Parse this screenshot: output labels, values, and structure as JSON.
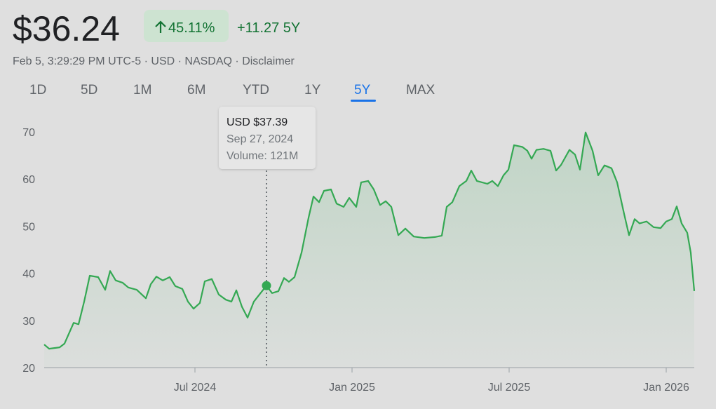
{
  "header": {
    "price": "$36.24",
    "change_percent": "45.11%",
    "change": "+11.27 5Y",
    "subtitle": "Feb 5, 3:29:29 PM UTC-5 · USD · NASDAQ · Disclaimer",
    "tabs": [
      "1D",
      "5D",
      "1M",
      "6M",
      "YTD",
      "1Y",
      "5Y",
      "MAX"
    ]
  },
  "chart_data": {
    "type": "line",
    "grid": false,
    "xlim": [
      2024.0201,
      2026.0893
    ],
    "xticks": [
      {
        "value": 2024.5,
        "label": "Jul 2024"
      },
      {
        "value": 2025.0,
        "label": "Jan 2025"
      },
      {
        "value": 2025.5,
        "label": "Jul 2025"
      },
      {
        "value": 2026.0,
        "label": "Jan 2026"
      }
    ],
    "ylim": [
      20,
      72
    ],
    "yticks": [
      20,
      30,
      40,
      50,
      60,
      70
    ],
    "tooltip": {
      "price": "USD $37.39",
      "date": "Sep 27, 2024",
      "volume": "Volume: 121M"
    },
    "series": [
      {
        "color": "#34a853",
        "x": [
          2024.0201,
          2024.0357,
          2024.0692,
          2024.0848,
          2024.1138,
          2024.1295,
          2024.1473,
          2024.1652,
          2024.192,
          2024.2143,
          2024.2299,
          2024.2478,
          2024.2701,
          2024.2879,
          2024.3147,
          2024.3437,
          2024.3594,
          2024.3772,
          2024.3973,
          2024.4196,
          2024.4375,
          2024.4598,
          2024.4777,
          2024.4955,
          2024.5156,
          2024.5313,
          2024.5536,
          2024.5759,
          2024.5982,
          2024.6161,
          2024.6317,
          2024.6496,
          2024.6674,
          2024.6875,
          2024.7098,
          2024.7277,
          2024.7455,
          2024.7656,
          2024.7835,
          2024.7991,
          2024.817,
          2024.8393,
          2024.8616,
          2024.8772,
          2024.8951,
          2024.9107,
          2024.933,
          2024.9509,
          2024.9732,
          2024.9911,
          2025.0134,
          2025.029,
          2025.0513,
          2025.0692,
          2025.0893,
          2025.1071,
          2025.125,
          2025.1473,
          2025.1696,
          2025.1964,
          2025.2299,
          2025.2634,
          2025.2857,
          2025.3013,
          2025.3192,
          2025.3415,
          2025.3638,
          2025.3795,
          2025.3973,
          2025.4308,
          2025.4464,
          2025.4643,
          2025.4821,
          2025.4978,
          2025.5156,
          2025.5424,
          2025.558,
          2025.5714,
          2025.5871,
          2025.6094,
          2025.6317,
          2025.6496,
          2025.6652,
          2025.692,
          2025.7098,
          2025.7254,
          2025.7433,
          2025.7656,
          2025.7835,
          2025.8036,
          2025.8259,
          2025.8438,
          2025.8661,
          2025.8817,
          2025.8996,
          2025.9152,
          2025.9375,
          2025.9598,
          2025.9821,
          2026.0,
          2026.0179,
          2026.0335,
          2026.0491,
          2026.067,
          2026.0781,
          2026.0893
        ],
        "values": [
          24.9,
          24.0,
          24.3,
          25.1,
          29.5,
          29.2,
          34,
          39.5,
          39.2,
          36.5,
          40.5,
          38.5,
          38,
          37,
          36.5,
          34.7,
          37.7,
          39.3,
          38.5,
          39.2,
          37.3,
          36.7,
          34,
          32.5,
          33.7,
          38.3,
          38.8,
          35.5,
          34.4,
          34,
          36.4,
          32.9,
          30.6,
          34,
          35.9,
          37.39,
          35.8,
          36.2,
          39,
          38.2,
          39.2,
          44.4,
          51.8,
          56.3,
          55.1,
          57.5,
          57.8,
          54.8,
          54.1,
          56,
          54.1,
          59.3,
          59.6,
          57.8,
          54.5,
          55.3,
          54.1,
          48.1,
          49.5,
          47.8,
          47.5,
          47.7,
          48,
          54.1,
          55.1,
          58.5,
          59.6,
          61.8,
          59.6,
          59,
          59.6,
          58.5,
          60.8,
          62,
          67.2,
          66.8,
          66,
          64.3,
          66.2,
          66.4,
          66,
          61.8,
          63,
          66.2,
          65.2,
          62,
          69.9,
          66,
          60.8,
          62.9,
          62.3,
          59.3,
          52.6,
          48.1,
          51.5,
          50.6,
          51,
          49.8,
          49.6,
          51,
          51.5,
          54.2,
          50.6,
          48.6,
          44.4,
          36.24
        ]
      }
    ]
  }
}
